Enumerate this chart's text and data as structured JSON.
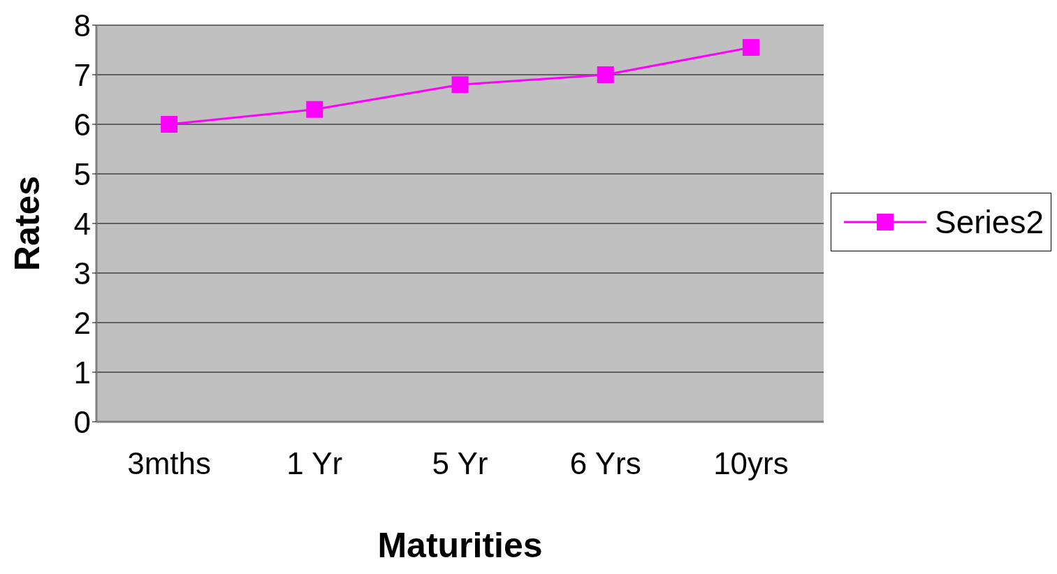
{
  "chart_data": {
    "type": "line",
    "xlabel": "Maturities",
    "ylabel": "Rates",
    "categories": [
      "3mths",
      "1 Yr",
      "5 Yr",
      "6 Yrs",
      "10yrs"
    ],
    "series": [
      {
        "name": "Series2",
        "color": "#ff00ff",
        "values": [
          6.0,
          6.3,
          6.8,
          7.0,
          7.55
        ]
      }
    ],
    "ylim": [
      0,
      8
    ],
    "yticks": [
      0,
      1,
      2,
      3,
      4,
      5,
      6,
      7,
      8
    ],
    "grid": "y",
    "legend": "right",
    "marker": "square",
    "line_style": "solid"
  }
}
